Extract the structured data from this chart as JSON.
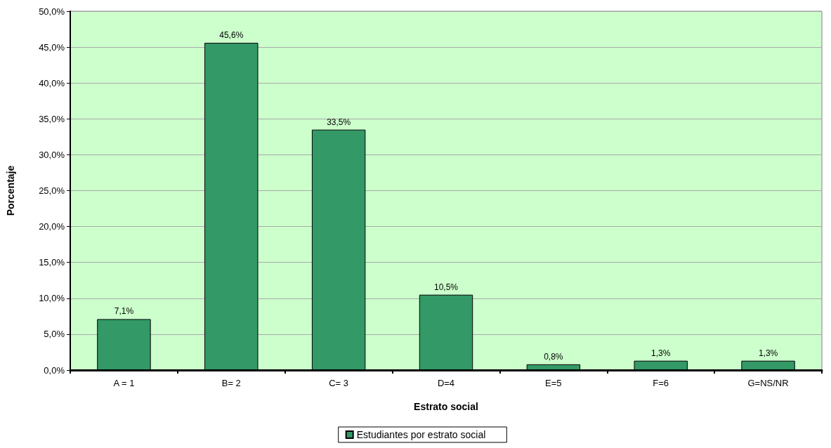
{
  "chart_data": {
    "type": "bar",
    "xlabel": "Estrato social",
    "ylabel": "Porcentaje",
    "categories": [
      "A = 1",
      "B= 2",
      "C= 3",
      "D=4",
      "E=5",
      "F=6",
      "G=NS/NR"
    ],
    "series": [
      {
        "name": "Estudiantes por estrato social",
        "color": "#339966",
        "values": [
          7.1,
          45.6,
          33.5,
          10.5,
          0.8,
          1.3,
          1.3
        ],
        "value_labels": [
          "7,1%",
          "45,6%",
          "33,5%",
          "10,5%",
          "0,8%",
          "1,3%",
          "1,3%"
        ]
      }
    ],
    "ylim": [
      0,
      50
    ],
    "yticks": [
      {
        "value": 0,
        "label": "0,0%"
      },
      {
        "value": 5,
        "label": "5,0%"
      },
      {
        "value": 10,
        "label": "10,0%"
      },
      {
        "value": 15,
        "label": "15,0%"
      },
      {
        "value": 20,
        "label": "20,0%"
      },
      {
        "value": 25,
        "label": "25,0%"
      },
      {
        "value": 30,
        "label": "30,0%"
      },
      {
        "value": 35,
        "label": "35,0%"
      },
      {
        "value": 40,
        "label": "40,0%"
      },
      {
        "value": 45,
        "label": "45,0%"
      },
      {
        "value": 50,
        "label": "50,0%"
      }
    ],
    "grid": "y",
    "legend": "bottom"
  }
}
